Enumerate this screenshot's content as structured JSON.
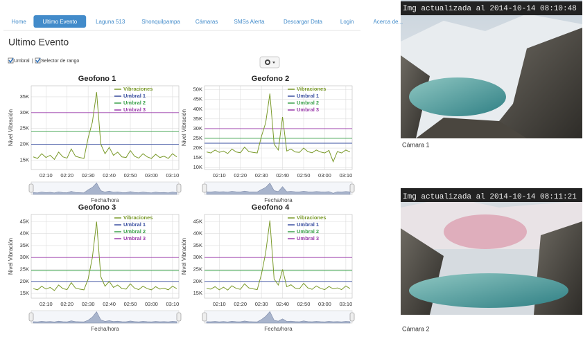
{
  "nav": {
    "items": [
      "Home",
      "Ultimo Evento",
      "Laguna 513",
      "Shonquilpampa",
      "Cámaras",
      "SMSs Alerta",
      "Descargar Data",
      "Login",
      "Acerca de..."
    ],
    "active": 1
  },
  "page_title": "Ultimo Evento",
  "controls": {
    "checkbox_1": "Umbral",
    "separator": "|",
    "checkbox_2": "Selector de rango"
  },
  "charts": [
    {
      "title": "Geofono 1",
      "y_label": "Nivel Vibración",
      "x_label": "Fecha/hora",
      "xlim": [
        123,
        193
      ],
      "xticks": [
        {
          "value": 130,
          "label": "02:10"
        },
        {
          "value": 140,
          "label": "02:20"
        },
        {
          "value": 150,
          "label": "02:30"
        },
        {
          "value": 160,
          "label": "02:40"
        },
        {
          "value": 170,
          "label": "02:50"
        },
        {
          "value": 180,
          "label": "03:00"
        },
        {
          "value": 190,
          "label": "03:10"
        }
      ],
      "ylim": [
        12000,
        38500
      ],
      "yticks": [
        {
          "value": 15000,
          "label": "15K"
        },
        {
          "value": 20000,
          "label": "20K"
        },
        {
          "value": 25000,
          "label": "25K"
        },
        {
          "value": 30000,
          "label": "30K"
        },
        {
          "value": 35000,
          "label": "35K"
        }
      ],
      "x": [
        124,
        126,
        128,
        130,
        132,
        134,
        136,
        138,
        140,
        142,
        144,
        146,
        148,
        150,
        152,
        154,
        156,
        158,
        160,
        162,
        164,
        166,
        168,
        170,
        172,
        174,
        176,
        178,
        180,
        182,
        184,
        186,
        188,
        190,
        192
      ],
      "series": [
        {
          "name": "Vibraciones",
          "color": "#7a9a2a",
          "values": [
            16000,
            15500,
            17000,
            15800,
            16500,
            15200,
            17500,
            16000,
            15600,
            18500,
            16200,
            15800,
            15500,
            22000,
            27000,
            36500,
            20000,
            17000,
            19000,
            16500,
            17500,
            16000,
            15800,
            18000,
            16200,
            15600,
            17000,
            16000,
            15500,
            16800,
            15800,
            16200,
            15500,
            17000,
            16000
          ]
        }
      ],
      "thresholds": [
        {
          "name": "Umbral 1",
          "color": "#3a4fa0",
          "value": 20000
        },
        {
          "name": "Umbral 2",
          "color": "#3aa04a",
          "value": 24000
        },
        {
          "name": "Umbral 3",
          "color": "#9a3aaa",
          "value": 30000
        }
      ]
    },
    {
      "title": "Geofono 2",
      "y_label": "Nivel Vibración",
      "x_label": "Fecha/hora",
      "xlim": [
        123,
        193
      ],
      "xticks": [
        {
          "value": 130,
          "label": "02:10"
        },
        {
          "value": 140,
          "label": "02:20"
        },
        {
          "value": 150,
          "label": "02:30"
        },
        {
          "value": 160,
          "label": "02:40"
        },
        {
          "value": 170,
          "label": "02:50"
        },
        {
          "value": 180,
          "label": "03:00"
        },
        {
          "value": 190,
          "label": "03:10"
        }
      ],
      "ylim": [
        9000,
        52000
      ],
      "yticks": [
        {
          "value": 10000,
          "label": "10K"
        },
        {
          "value": 15000,
          "label": "15K"
        },
        {
          "value": 20000,
          "label": "20K"
        },
        {
          "value": 25000,
          "label": "25K"
        },
        {
          "value": 30000,
          "label": "30K"
        },
        {
          "value": 35000,
          "label": "35K"
        },
        {
          "value": 40000,
          "label": "40K"
        },
        {
          "value": 45000,
          "label": "45K"
        },
        {
          "value": 50000,
          "label": "50K"
        }
      ],
      "x": [
        124,
        126,
        128,
        130,
        132,
        134,
        136,
        138,
        140,
        142,
        144,
        146,
        148,
        150,
        152,
        154,
        156,
        158,
        160,
        162,
        164,
        166,
        168,
        170,
        172,
        174,
        176,
        178,
        180,
        182,
        184,
        186,
        188,
        190,
        192
      ],
      "series": [
        {
          "name": "Vibraciones",
          "color": "#7a9a2a",
          "values": [
            18000,
            17500,
            19000,
            17800,
            18500,
            17200,
            19500,
            18000,
            17600,
            20500,
            18200,
            17800,
            17500,
            26000,
            33000,
            48000,
            22000,
            19000,
            36000,
            18500,
            19500,
            18000,
            17800,
            20000,
            18200,
            17600,
            19000,
            18000,
            17500,
            18800,
            13000,
            18200,
            17500,
            19000,
            18000
          ]
        }
      ],
      "thresholds": [
        {
          "name": "Umbral 1",
          "color": "#3a4fa0",
          "value": 22500
        },
        {
          "name": "Umbral 2",
          "color": "#3aa04a",
          "value": 25000
        },
        {
          "name": "Umbral 3",
          "color": "#9a3aaa",
          "value": 30000
        }
      ]
    },
    {
      "title": "Geofono 3",
      "y_label": "Nivel Vibración",
      "x_label": "Fecha/hora",
      "xlim": [
        123,
        193
      ],
      "xticks": [
        {
          "value": 130,
          "label": "02:10"
        },
        {
          "value": 140,
          "label": "02:20"
        },
        {
          "value": 150,
          "label": "02:30"
        },
        {
          "value": 160,
          "label": "02:40"
        },
        {
          "value": 170,
          "label": "02:50"
        },
        {
          "value": 180,
          "label": "03:00"
        },
        {
          "value": 190,
          "label": "03:10"
        }
      ],
      "ylim": [
        13000,
        48000
      ],
      "yticks": [
        {
          "value": 15000,
          "label": "15K"
        },
        {
          "value": 20000,
          "label": "20K"
        },
        {
          "value": 25000,
          "label": "25K"
        },
        {
          "value": 30000,
          "label": "30K"
        },
        {
          "value": 35000,
          "label": "35K"
        },
        {
          "value": 40000,
          "label": "40K"
        },
        {
          "value": 45000,
          "label": "45K"
        }
      ],
      "x": [
        124,
        126,
        128,
        130,
        132,
        134,
        136,
        138,
        140,
        142,
        144,
        146,
        148,
        150,
        152,
        154,
        156,
        158,
        160,
        162,
        164,
        166,
        168,
        170,
        172,
        174,
        176,
        178,
        180,
        182,
        184,
        186,
        188,
        190,
        192
      ],
      "series": [
        {
          "name": "Vibraciones",
          "color": "#7a9a2a",
          "values": [
            17000,
            16500,
            18000,
            16800,
            17500,
            16200,
            18500,
            17000,
            16600,
            19500,
            17200,
            16800,
            16500,
            21000,
            30000,
            45000,
            22000,
            18000,
            20000,
            17500,
            18500,
            17000,
            16800,
            19000,
            17200,
            16600,
            18000,
            17000,
            16500,
            17800,
            16800,
            17200,
            16500,
            18000,
            17000
          ]
        }
      ],
      "thresholds": [
        {
          "name": "Umbral 1",
          "color": "#3a4fa0",
          "value": 20000
        },
        {
          "name": "Umbral 2",
          "color": "#3aa04a",
          "value": 24500
        },
        {
          "name": "Umbral 3",
          "color": "#9a3aaa",
          "value": 30000
        }
      ]
    },
    {
      "title": "Geofono 4",
      "y_label": "Nivel Vibración",
      "x_label": "Fecha/hora",
      "xlim": [
        123,
        193
      ],
      "xticks": [
        {
          "value": 130,
          "label": "02:10"
        },
        {
          "value": 140,
          "label": "02:20"
        },
        {
          "value": 150,
          "label": "02:30"
        },
        {
          "value": 160,
          "label": "02:40"
        },
        {
          "value": 170,
          "label": "02:50"
        },
        {
          "value": 180,
          "label": "03:00"
        },
        {
          "value": 190,
          "label": "03:10"
        }
      ],
      "ylim": [
        13000,
        48000
      ],
      "yticks": [
        {
          "value": 15000,
          "label": "15K"
        },
        {
          "value": 20000,
          "label": "20K"
        },
        {
          "value": 25000,
          "label": "25K"
        },
        {
          "value": 30000,
          "label": "30K"
        },
        {
          "value": 35000,
          "label": "35K"
        },
        {
          "value": 40000,
          "label": "40K"
        },
        {
          "value": 45000,
          "label": "45K"
        }
      ],
      "x": [
        124,
        126,
        128,
        130,
        132,
        134,
        136,
        138,
        140,
        142,
        144,
        146,
        148,
        150,
        152,
        154,
        156,
        158,
        160,
        162,
        164,
        166,
        168,
        170,
        172,
        174,
        176,
        178,
        180,
        182,
        184,
        186,
        188,
        190,
        192
      ],
      "series": [
        {
          "name": "Vibraciones",
          "color": "#7a9a2a",
          "values": [
            17000,
            16800,
            17800,
            16500,
            17600,
            16400,
            18200,
            17100,
            16700,
            19000,
            17300,
            16900,
            16600,
            23000,
            32000,
            45500,
            21000,
            18500,
            25000,
            17800,
            18600,
            17200,
            16900,
            19200,
            17300,
            16700,
            18100,
            17100,
            16600,
            17900,
            16900,
            17300,
            16600,
            18100,
            17000
          ]
        }
      ],
      "thresholds": [
        {
          "name": "Umbral 1",
          "color": "#3a4fa0",
          "value": 20000
        },
        {
          "name": "Umbral 2",
          "color": "#3aa04a",
          "value": 24500
        },
        {
          "name": "Umbral 3",
          "color": "#9a3aaa",
          "value": 30000
        }
      ]
    }
  ],
  "cameras": [
    {
      "caption": "Img actualizada al 2014-10-14 08:10:48",
      "label": "Cámara 1"
    },
    {
      "caption": "Img actualizada al 2014-10-14 08:11:21",
      "label": "Cámara 2"
    }
  ]
}
